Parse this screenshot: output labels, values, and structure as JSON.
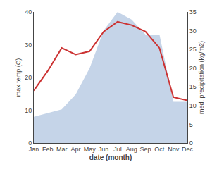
{
  "chart_data": {
    "type": "line",
    "categories": [
      "Jan",
      "Feb",
      "Mar",
      "Apr",
      "May",
      "Jun",
      "Jul",
      "Aug",
      "Sep",
      "Oct",
      "Nov",
      "Dec"
    ],
    "xlabel": "date (month)",
    "ylabel": "max temp (C)",
    "y2label": "med. precipitation (kg/m2)",
    "series": [
      {
        "type": "area",
        "axis": "y2",
        "color": "#c5d4e8",
        "values": [
          7,
          8,
          9,
          13,
          20,
          30,
          35,
          33,
          29,
          29,
          11,
          11
        ]
      },
      {
        "type": "line",
        "color": "#cc3333",
        "values": [
          16,
          22,
          29,
          27,
          28,
          34,
          37,
          36,
          34,
          29,
          14,
          13
        ]
      }
    ],
    "ylim": [
      0,
      40
    ],
    "yticks": [
      0,
      10,
      20,
      30,
      40
    ],
    "y2lim": [
      0,
      35
    ],
    "y2ticks": [
      0,
      5,
      10,
      15,
      20,
      25,
      30,
      35
    ],
    "grid": false
  }
}
